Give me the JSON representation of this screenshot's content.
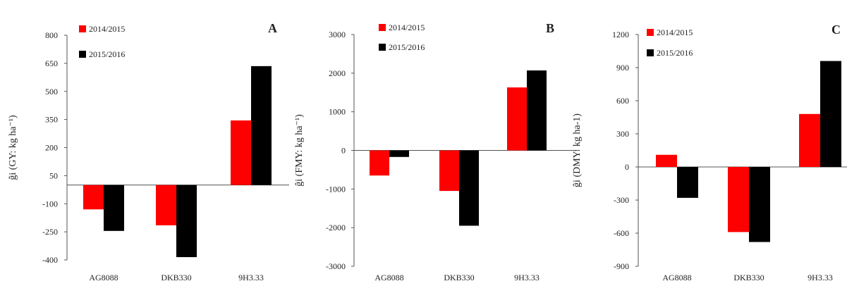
{
  "chart_data": [
    {
      "type": "bar",
      "panel_label": "A",
      "ylabel": "ĝi (GY: kg ha⁻¹)",
      "categories": [
        "AG8088",
        "DKB330",
        "9H3.33"
      ],
      "ylim": [
        -400,
        800
      ],
      "yticks": [
        800,
        650,
        500,
        350,
        200,
        50,
        -100,
        -250,
        -400
      ],
      "legend_position": "top-left",
      "series": [
        {
          "name": "2014/2015",
          "color": "#ff0000",
          "values": [
            -130,
            -215,
            345
          ]
        },
        {
          "name": "2015/2016",
          "color": "#000000",
          "values": [
            -245,
            -385,
            635
          ]
        }
      ]
    },
    {
      "type": "bar",
      "panel_label": "B",
      "ylabel": "ĝi (FMY: kg ha⁻¹)",
      "categories": [
        "AG8088",
        "DKB330",
        "9H3.33"
      ],
      "ylim": [
        -3000,
        3000
      ],
      "yticks": [
        3000,
        2000,
        1000,
        0,
        -1000,
        -2000,
        -3000
      ],
      "legend_position": "top-left",
      "series": [
        {
          "name": "2014/2015",
          "color": "#ff0000",
          "values": [
            -650,
            -1050,
            1630
          ]
        },
        {
          "name": "2015/2016",
          "color": "#000000",
          "values": [
            -170,
            -1950,
            2070
          ]
        }
      ]
    },
    {
      "type": "bar",
      "panel_label": "C",
      "ylabel": "ĝi (DMY: kg ha-1)",
      "categories": [
        "AG8088",
        "DKB330",
        "9H3.33"
      ],
      "ylim": [
        -900,
        1200
      ],
      "yticks": [
        1200,
        900,
        600,
        300,
        0,
        -300,
        -600,
        -900
      ],
      "legend_position": "top-left",
      "series": [
        {
          "name": "2014/2015",
          "color": "#ff0000",
          "values": [
            110,
            -590,
            480
          ]
        },
        {
          "name": "2015/2016",
          "color": "#000000",
          "values": [
            -280,
            -680,
            960
          ]
        }
      ]
    }
  ]
}
